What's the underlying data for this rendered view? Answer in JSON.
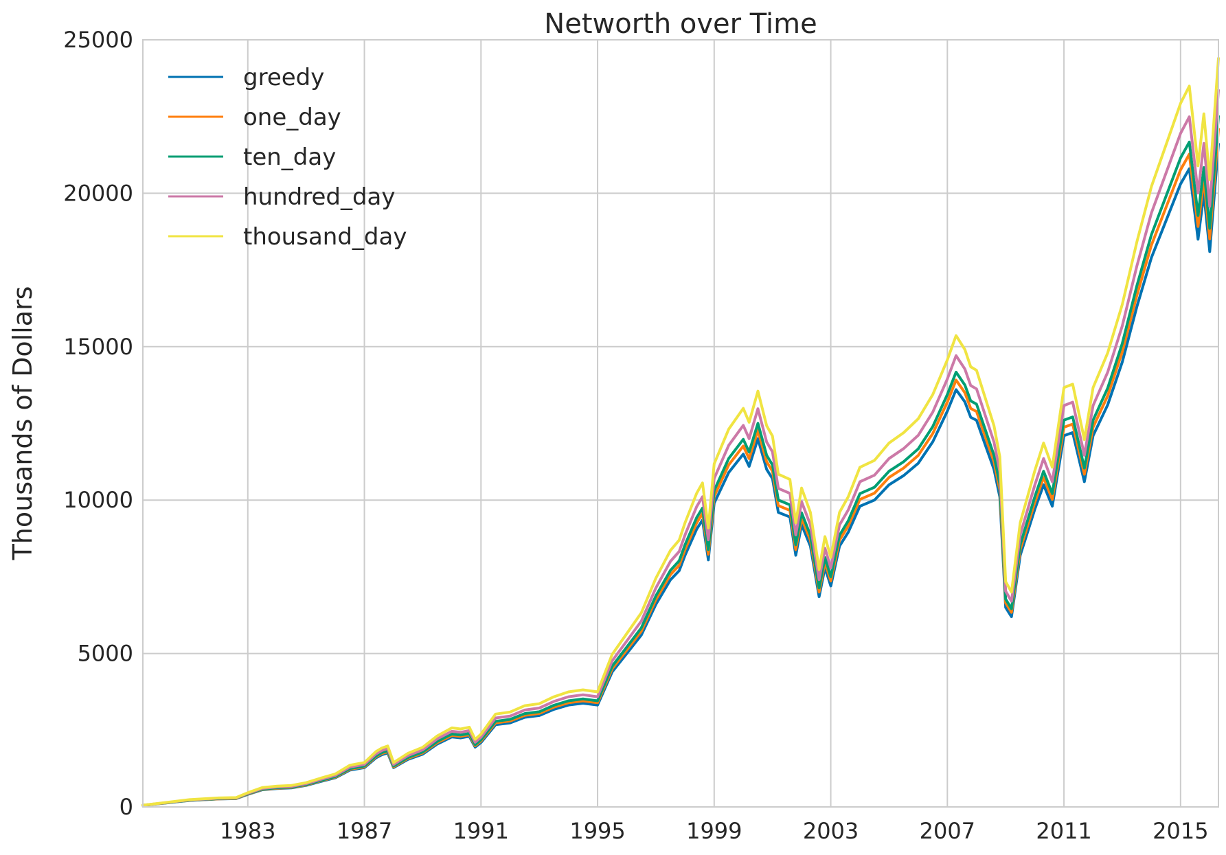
{
  "chart_data": {
    "type": "line",
    "title": "Networth over Time",
    "xlabel": "",
    "ylabel": "Thousands of Dollars",
    "xlim": [
      1979.4,
      2016.3
    ],
    "ylim": [
      0,
      25000
    ],
    "x_ticks": [
      1983,
      1987,
      1991,
      1995,
      1999,
      2003,
      2007,
      2011,
      2015
    ],
    "x_tick_labels": [
      "1983",
      "1987",
      "1991",
      "1995",
      "1999",
      "2003",
      "2007",
      "2011",
      "2015"
    ],
    "y_ticks": [
      0,
      5000,
      10000,
      15000,
      20000,
      25000
    ],
    "y_tick_labels": [
      "0",
      "5000",
      "10000",
      "15000",
      "20000",
      "25000"
    ],
    "grid": true,
    "legend_position": "top-left",
    "x": [
      1979.4,
      1980.0,
      1981.0,
      1982.0,
      1982.6,
      1983.0,
      1983.5,
      1984.0,
      1984.5,
      1985.0,
      1985.5,
      1986.0,
      1986.5,
      1987.0,
      1987.4,
      1987.6,
      1987.8,
      1988.0,
      1988.5,
      1989.0,
      1989.5,
      1990.0,
      1990.3,
      1990.6,
      1990.8,
      1991.0,
      1991.5,
      1992.0,
      1992.5,
      1993.0,
      1993.5,
      1994.0,
      1994.5,
      1995.0,
      1995.5,
      1996.0,
      1996.5,
      1997.0,
      1997.5,
      1997.8,
      1998.0,
      1998.4,
      1998.6,
      1998.8,
      1999.0,
      1999.5,
      2000.0,
      2000.2,
      2000.5,
      2000.8,
      2001.0,
      2001.2,
      2001.6,
      2001.8,
      2002.0,
      2002.3,
      2002.6,
      2002.8,
      2003.0,
      2003.3,
      2003.6,
      2004.0,
      2004.5,
      2005.0,
      2005.5,
      2006.0,
      2006.5,
      2007.0,
      2007.3,
      2007.6,
      2007.8,
      2008.0,
      2008.3,
      2008.6,
      2008.8,
      2009.0,
      2009.2,
      2009.5,
      2010.0,
      2010.3,
      2010.6,
      2011.0,
      2011.3,
      2011.7,
      2012.0,
      2012.5,
      2013.0,
      2013.5,
      2014.0,
      2014.5,
      2015.0,
      2015.3,
      2015.6,
      2015.8,
      2016.0,
      2016.3
    ],
    "series": [
      {
        "name": "greedy",
        "color": "#0072b2",
        "values": [
          50,
          110,
          210,
          260,
          270,
          410,
          560,
          600,
          620,
          700,
          830,
          950,
          1200,
          1280,
          1600,
          1700,
          1760,
          1280,
          1550,
          1720,
          2050,
          2280,
          2250,
          2300,
          1950,
          2100,
          2680,
          2740,
          2920,
          2980,
          3180,
          3320,
          3380,
          3320,
          4400,
          5000,
          5600,
          6600,
          7400,
          7700,
          8200,
          9050,
          9350,
          8050,
          9900,
          10900,
          11500,
          11100,
          12000,
          11000,
          10700,
          9600,
          9450,
          8200,
          9200,
          8500,
          6850,
          7800,
          7200,
          8500,
          8950,
          9800,
          10000,
          10500,
          10800,
          11200,
          11900,
          12900,
          13600,
          13200,
          12700,
          12600,
          11800,
          11000,
          10100,
          6500,
          6200,
          8200,
          9700,
          10500,
          9800,
          12100,
          12200,
          10600,
          12100,
          13100,
          14500,
          16300,
          17900,
          19100,
          20300,
          20800,
          18500,
          20000,
          18100,
          21600
        ]
      },
      {
        "name": "one_day",
        "color": "#ff7f0e",
        "values": [
          52,
          112,
          214,
          265,
          276,
          418,
          571,
          612,
          633,
          715,
          848,
          970,
          1226,
          1308,
          1635,
          1738,
          1799,
          1308,
          1584,
          1758,
          2096,
          2331,
          2300,
          2351,
          1993,
          2147,
          2740,
          2801,
          2985,
          3047,
          3252,
          3395,
          3456,
          3395,
          4500,
          5113,
          5727,
          6750,
          7568,
          7875,
          8386,
          9256,
          9563,
          8233,
          10125,
          11148,
          11761,
          11352,
          12273,
          11250,
          10943,
          9818,
          9665,
          8386,
          9409,
          8693,
          7006,
          7977,
          7364,
          8693,
          9153,
          10023,
          10227,
          10739,
          11045,
          11455,
          12170,
          13193,
          13909,
          13500,
          12989,
          12886,
          12068,
          11250,
          10330,
          6648,
          6341,
          8386,
          9920,
          10739,
          10023,
          12375,
          12477,
          10841,
          12375,
          13398,
          14830,
          16670,
          18307,
          19534,
          20761,
          21273,
          18920,
          20455,
          18511,
          22091
        ]
      },
      {
        "name": "ten_day",
        "color": "#009e73",
        "values": [
          53,
          114,
          218,
          270,
          281,
          427,
          583,
          624,
          645,
          729,
          864,
          989,
          1250,
          1333,
          1666,
          1771,
          1833,
          1333,
          1614,
          1791,
          2135,
          2374,
          2343,
          2395,
          2031,
          2187,
          2791,
          2853,
          3041,
          3103,
          3312,
          3458,
          3520,
          3458,
          4585,
          5209,
          5834,
          6876,
          7709,
          8022,
          8543,
          9429,
          9741,
          8386,
          10314,
          11356,
          11981,
          11564,
          12502,
          11460,
          11148,
          10002,
          9846,
          8543,
          9585,
          8855,
          7137,
          8126,
          7501,
          8855,
          9324,
          10210,
          10418,
          10939,
          11252,
          11669,
          12398,
          13440,
          14169,
          13752,
          13232,
          13127,
          12294,
          11460,
          10523,
          6772,
          6459,
          8543,
          10106,
          10939,
          10210,
          12606,
          12711,
          11043,
          12606,
          13648,
          15106,
          16982,
          18649,
          19899,
          21149,
          21670,
          19274,
          20837,
          18857,
          22504
        ]
      },
      {
        "name": "hundred_day",
        "color": "#cc79a7",
        "values": [
          55,
          119,
          227,
          281,
          292,
          443,
          605,
          648,
          670,
          757,
          897,
          1027,
          1298,
          1384,
          1730,
          1838,
          1903,
          1384,
          1676,
          1860,
          2217,
          2465,
          2433,
          2487,
          2109,
          2271,
          2898,
          2962,
          3157,
          3222,
          3438,
          3590,
          3654,
          3590,
          4760,
          5406,
          6055,
          7136,
          8001,
          8326,
          8866,
          9786,
          10110,
          8704,
          10705,
          11787,
          12436,
          12002,
          12976,
          11894,
          11571,
          10381,
          10219,
          8866,
          9948,
          9190,
          7408,
          8434,
          7786,
          9190,
          9677,
          10597,
          10813,
          11353,
          11679,
          12111,
          12868,
          13948,
          14706,
          14273,
          13733,
          13624,
          12760,
          11894,
          10921,
          7029,
          6704,
          8866,
          10488,
          11353,
          10597,
          13083,
          13192,
          11461,
          13083,
          14165,
          15679,
          17625,
          19356,
          20653,
          21950,
          22491,
          20004,
          21626,
          19571,
          23356
        ]
      },
      {
        "name": "thousand_day",
        "color": "#f0e442",
        "values": [
          57,
          124,
          237,
          294,
          305,
          463,
          632,
          677,
          700,
          791,
          937,
          1073,
          1356,
          1446,
          1807,
          1920,
          1988,
          1446,
          1750,
          1943,
          2315,
          2575,
          2541,
          2598,
          2203,
          2372,
          3027,
          3094,
          3298,
          3365,
          3591,
          3749,
          3817,
          3749,
          4972,
          5647,
          6324,
          7454,
          8357,
          8697,
          9261,
          10222,
          10560,
          9092,
          11181,
          12311,
          12990,
          12536,
          13553,
          12424,
          12087,
          10843,
          10674,
          9261,
          10391,
          9599,
          7737,
          8810,
          8133,
          9599,
          10108,
          11069,
          11294,
          11859,
          12198,
          12650,
          13441,
          14570,
          15361,
          14909,
          14344,
          14231,
          13328,
          12424,
          11408,
          7342,
          7002,
          9261,
          10955,
          11859,
          11069,
          13666,
          13779,
          11972,
          13666,
          14795,
          16377,
          18410,
          20218,
          21572,
          22927,
          23491,
          20895,
          22589,
          20443,
          24395
        ]
      }
    ]
  }
}
